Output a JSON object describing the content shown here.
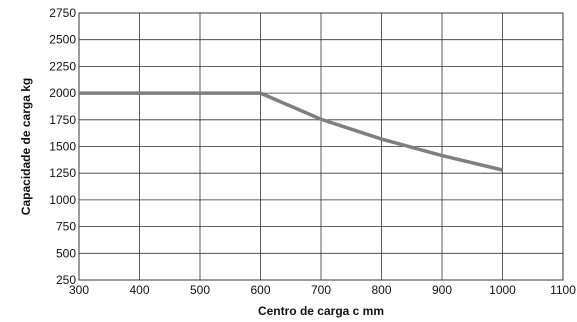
{
  "chart_data": {
    "type": "line",
    "xlabel": "Centro de carga c mm",
    "ylabel": "Capacidade de carga kg",
    "xlim": [
      300,
      1100
    ],
    "ylim": [
      250,
      2750
    ],
    "x_ticks": [
      300,
      400,
      500,
      600,
      700,
      800,
      900,
      1000,
      1100
    ],
    "y_ticks": [
      250,
      500,
      750,
      1000,
      1250,
      1500,
      1750,
      2000,
      2250,
      2500,
      2750
    ],
    "grid": true,
    "series": [
      {
        "color": "#7f7f7f",
        "points": [
          {
            "x": 300,
            "y": 2000
          },
          {
            "x": 600,
            "y": 2000
          },
          {
            "x": 700,
            "y": 1755
          },
          {
            "x": 800,
            "y": 1570
          },
          {
            "x": 900,
            "y": 1415
          },
          {
            "x": 1000,
            "y": 1280
          }
        ]
      }
    ]
  }
}
